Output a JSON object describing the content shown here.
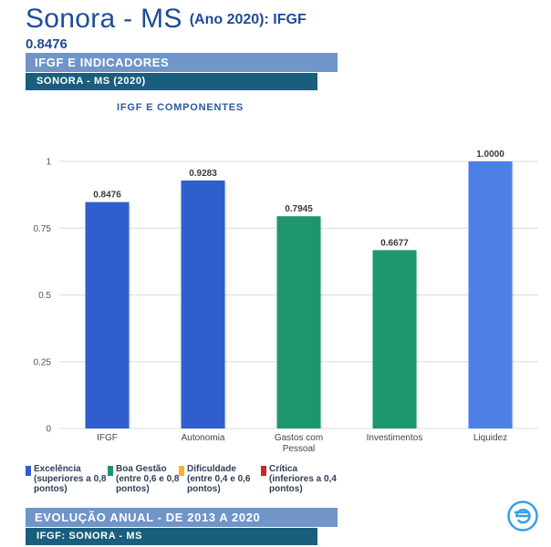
{
  "header": {
    "title": "Sonora - MS",
    "subtitle": "(Ano 2020): IFGF",
    "value": "0.8476"
  },
  "bands": {
    "top_main": "IFGF E INDICADORES",
    "top_sub": "SONORA - MS (2020)",
    "bottom_main": "EVOLUÇÃO ANUAL - DE 2013 A 2020",
    "bottom_sub": "IFGF: SONORA - MS"
  },
  "chart_data": {
    "type": "bar",
    "title": "IFGF E COMPONENTES",
    "xlabel": "",
    "ylabel": "",
    "ylim": [
      0,
      1
    ],
    "yticks": [
      0,
      0.25,
      0.5,
      0.75,
      1
    ],
    "ytick_labels": [
      "0",
      "0.25",
      "0.5",
      "0.75",
      "1"
    ],
    "grid": true,
    "categories": [
      "IFGF",
      "Autonomia",
      "Gastos com Pessoal",
      "Investimentos",
      "Liquidez"
    ],
    "values": [
      0.8476,
      0.9283,
      0.7945,
      0.6677,
      1.0
    ],
    "value_labels": [
      "0.8476",
      "0.9283",
      "0.7945",
      "0.6677",
      "1.0000"
    ],
    "bar_colors": [
      "#2f5fcc",
      "#2f5fcc",
      "#1d9670",
      "#1d9670",
      "#4c80e6"
    ]
  },
  "legend": [
    {
      "name": "Excelência",
      "description": "(superiores a 0,8 pontos)",
      "color": "#2f5fcc"
    },
    {
      "name": "Boa Gestão",
      "description": "(entre 0,6 e 0,8 pontos)",
      "color": "#1d9670"
    },
    {
      "name": "Dificuldade",
      "description": "(entre 0,4 e 0,6 pontos)",
      "color": "#f0b528"
    },
    {
      "name": "Crítica",
      "description": "(inferiores a 0,4 pontos)",
      "color": "#cf2626"
    }
  ],
  "logo": {
    "icon": "e-logo-icon",
    "color": "#3aa0e0"
  }
}
